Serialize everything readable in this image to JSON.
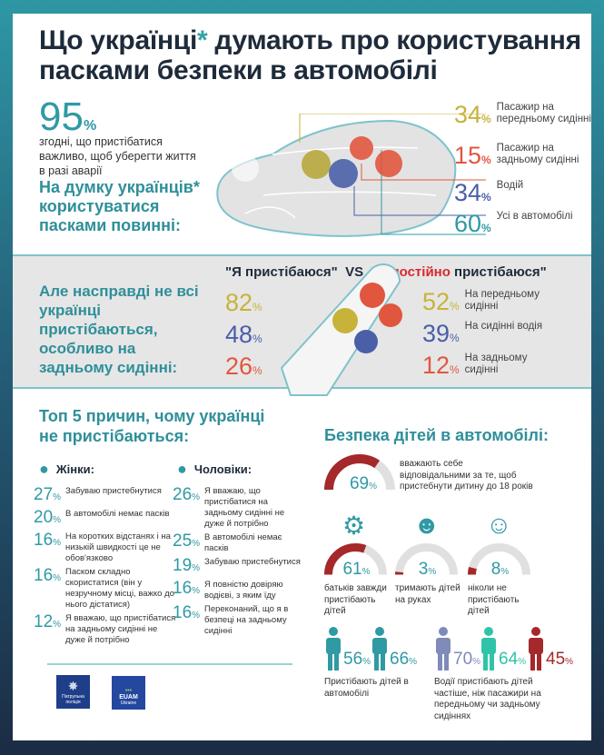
{
  "title": {
    "part1": "Що українці",
    "star": "*",
    "part2": " думають про користування",
    "line2": "пасками безпеки в автомобілі"
  },
  "agree": {
    "value": "95",
    "unit": "%",
    "text": "згодні, що пристібатися важливо, щоб уберегти життя в разі аварії"
  },
  "opinion_heading": "На думку українців* користуватися пасками повинні:",
  "should_wear": [
    {
      "value": "34",
      "label": "Пасажир на передньому сидінні",
      "color": "#c7b33a"
    },
    {
      "value": "15",
      "label": "Пасажир на задньому сидінні",
      "color": "#e0573e"
    },
    {
      "value": "34",
      "label": "Водій",
      "color": "#4a5fa8"
    },
    {
      "value": "60",
      "label": "Усі в автомобілі",
      "color": "#2f9aa4"
    }
  ],
  "reality": {
    "heading": "Але насправді не всі українці пристібаються, особливо на задньому сидінні:",
    "vs_left": "\"Я пристібаюся\"",
    "vs": "VS",
    "vs_right_pre": "\"Я ",
    "vs_right_accent": "постійно",
    "vs_right_post": " пристібаюся\"",
    "buckle": [
      {
        "value": "82",
        "color": "#c7b33a"
      },
      {
        "value": "48",
        "color": "#4a5fa8"
      },
      {
        "value": "26",
        "color": "#e0573e"
      }
    ],
    "always": [
      {
        "value": "52",
        "label": "На передньому сидінні",
        "color": "#c7b33a"
      },
      {
        "value": "39",
        "label": "На сидінні водія",
        "color": "#4a5fa8"
      },
      {
        "value": "12",
        "label": "На задньому сидінні",
        "color": "#e0573e"
      }
    ]
  },
  "reasons": {
    "heading": "Топ 5 причин, чому українці не пристібаються:",
    "women": {
      "label": "Жінки:",
      "items": [
        {
          "value": "27",
          "text": "Забуваю пристебнутися"
        },
        {
          "value": "20",
          "text": "В автомобілі немає пасків"
        },
        {
          "value": "16",
          "text": "На коротких відстанях і на низькій швидкості це не обов'язково"
        },
        {
          "value": "16",
          "text": "Паском складно скористатися (він у незручному місці, важко до нього дістатися)"
        },
        {
          "value": "12",
          "text": "Я вважаю, що пристібатися на задньому сидінні не дуже й потрібно"
        }
      ]
    },
    "men": {
      "label": "Чоловіки:",
      "items": [
        {
          "value": "26",
          "text": "Я вважаю, що пристібатися на задньому сидінні не дуже й потрібно"
        },
        {
          "value": "25",
          "text": "В автомобілі немає пасків"
        },
        {
          "value": "19",
          "text": "Забуваю пристебнутися"
        },
        {
          "value": "16",
          "text": "Я повністю довіряю водієві, з яким їду"
        },
        {
          "value": "16",
          "text": "Переконаний, що я в безпеці на задньому сидінні"
        }
      ]
    }
  },
  "children": {
    "heading": "Безпека дітей в автомобілі:",
    "responsible": {
      "value": 69,
      "label": "69",
      "text": "вважають себе відповідальними за те, щоб пристебнути дитину до 18 років"
    },
    "gauges": [
      {
        "value": 61,
        "label": "61",
        "text": "батьків завжди пристібають дітей",
        "icon": "child-seat-icon"
      },
      {
        "value": 3,
        "label": "3",
        "text": "тримають дітей на руках",
        "icon": "child-icon"
      },
      {
        "value": 8,
        "label": "8",
        "text": "ніколи не пристібають дітей",
        "icon": "parent-holding-child-icon"
      }
    ],
    "gender_figures": [
      {
        "value": "56",
        "color": "#2f9aa4",
        "icon": "woman-icon"
      },
      {
        "value": "66",
        "color": "#2f9aa4",
        "icon": "man-icon"
      }
    ],
    "gender_caption": "Пристібають дітей в автомобілі",
    "seat_figures": [
      {
        "value": "70",
        "color": "#7f8bb8",
        "icon": "driver-icon"
      },
      {
        "value": "64",
        "color": "#2fc4a8",
        "icon": "front-passenger-icon"
      },
      {
        "value": "45",
        "color": "#a5282a",
        "icon": "rear-passenger-icon"
      }
    ],
    "seat_caption": "Водії пристібають дітей частіше, ніж пасажири на передньому чи задньому сидіннях"
  },
  "pct": "%",
  "logos": [
    {
      "name": "Патрульна поліція"
    },
    {
      "name": "EUAM",
      "sub": "Ukraine"
    }
  ],
  "colors": {
    "teal": "#2f9aa4",
    "red": "#a5282a",
    "grey": "#e0e0e0"
  }
}
